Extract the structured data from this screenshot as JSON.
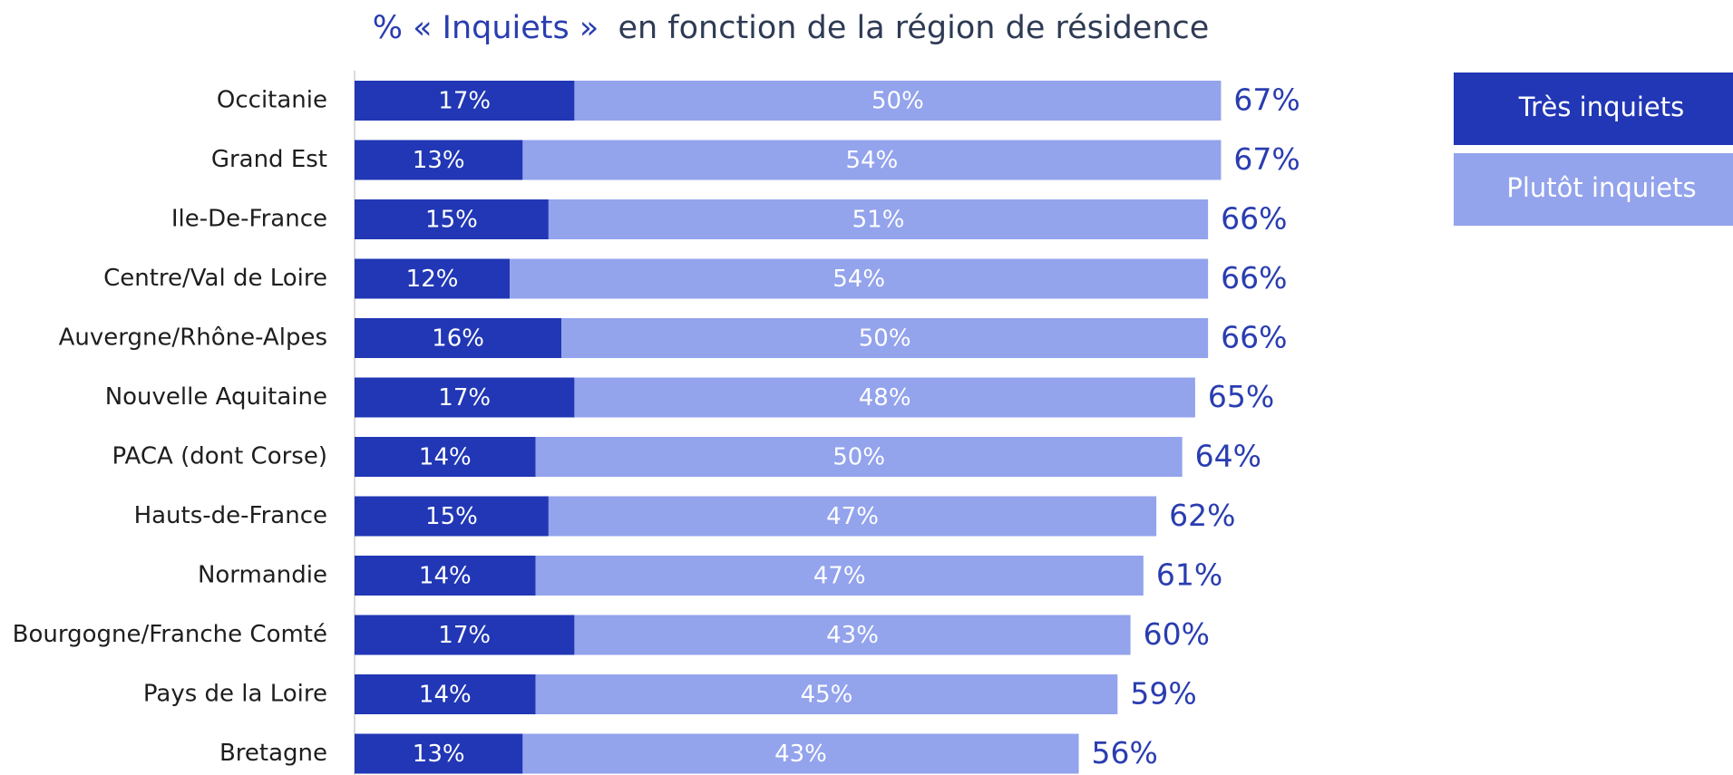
{
  "chart_data": {
    "type": "stacked-bar-horizontal",
    "title": [
      "% « Inquiets »",
      "en fonction de la région de résidence"
    ],
    "categories": [
      "Occitanie",
      "Grand Est",
      "Ile-De-France",
      "Centre/Val de Loire",
      "Auvergne/Rhône-Alpes",
      "Nouvelle Aquitaine",
      "PACA (dont Corse)",
      "Hauts-de-France",
      "Normandie",
      "Bourgogne/Franche Comté",
      "Pays de la Loire",
      "Bretagne"
    ],
    "series": [
      {
        "name": "Très inquiets",
        "color": "#2137b5",
        "values": [
          17,
          13,
          15,
          12,
          16,
          17,
          14,
          15,
          14,
          17,
          14,
          13
        ],
        "value_labels": [
          "17%",
          "13%",
          "15%",
          "12%",
          "16%",
          "17%",
          "14%",
          "15%",
          "14%",
          "17%",
          "14%",
          "13%"
        ]
      },
      {
        "name": "Plutôt inquiets",
        "color": "#93a3ec",
        "values": [
          50,
          54,
          51,
          54,
          50,
          48,
          50,
          47,
          47,
          43,
          45,
          43
        ],
        "value_labels": [
          "50%",
          "54%",
          "51%",
          "54%",
          "50%",
          "48%",
          "50%",
          "47%",
          "47%",
          "43%",
          "45%",
          "43%"
        ]
      }
    ],
    "totals": [
      67,
      67,
      66,
      66,
      66,
      65,
      64,
      62,
      61,
      60,
      59,
      56
    ],
    "total_labels": [
      "67%",
      "67%",
      "66%",
      "66%",
      "66%",
      "65%",
      "64%",
      "62%",
      "61%",
      "60%",
      "59%",
      "56%"
    ],
    "total_color": "#2a3db0",
    "xlim": [
      0,
      100
    ],
    "legend": "top-right"
  }
}
